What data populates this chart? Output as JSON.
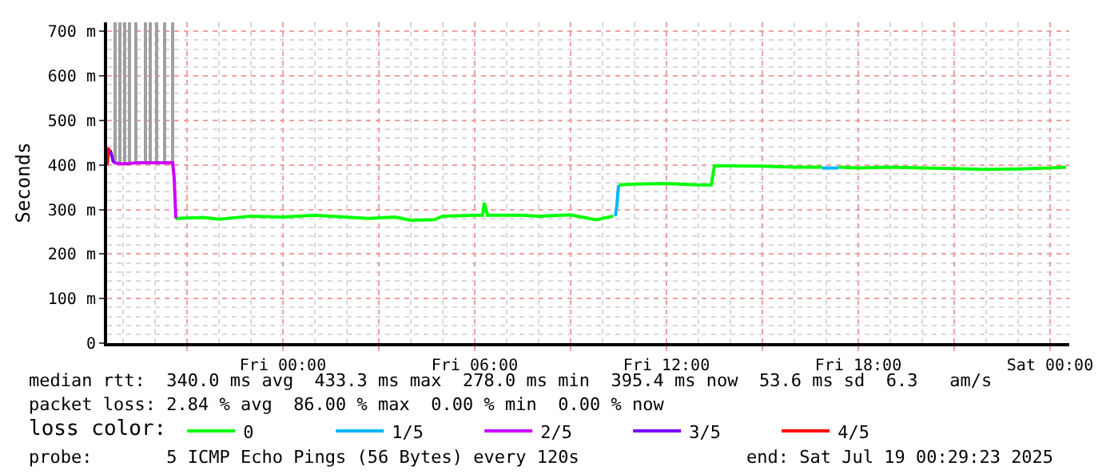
{
  "chart_data": {
    "type": "line",
    "ylabel": "Seconds",
    "legend_title": "loss color:",
    "legend": "bottom",
    "grid": true,
    "marker": "none",
    "line_style": "solid",
    "xlim": [
      "2025-07-17T18:30",
      "2025-07-19T00:36"
    ],
    "xticks": [
      {
        "value": "2025-07-17T21:00",
        "label": null
      },
      {
        "value": "2025-07-18T00:00",
        "label": "Fri 00:00"
      },
      {
        "value": "2025-07-18T03:00",
        "label": null
      },
      {
        "value": "2025-07-18T06:00",
        "label": "Fri 06:00"
      },
      {
        "value": "2025-07-18T09:00",
        "label": null
      },
      {
        "value": "2025-07-18T12:00",
        "label": "Fri 12:00"
      },
      {
        "value": "2025-07-18T15:00",
        "label": null
      },
      {
        "value": "2025-07-18T18:00",
        "label": "Fri 18:00"
      },
      {
        "value": "2025-07-18T21:00",
        "label": null
      },
      {
        "value": "2025-07-19T00:00",
        "label": "Sat 00:00"
      }
    ],
    "ylim": [
      0,
      720
    ],
    "yticks": [
      0,
      {
        "value": 100,
        "label": "100 m"
      },
      {
        "value": 200,
        "label": "200 m"
      },
      {
        "value": 300,
        "label": "300 m"
      },
      {
        "value": 400,
        "label": "400 m"
      },
      {
        "value": 500,
        "label": "500 m"
      },
      {
        "value": 600,
        "label": "600 m"
      },
      {
        "value": 700,
        "label": "700 m"
      }
    ],
    "series": [
      {
        "type": "bar",
        "color": "#a0a0a0",
        "x": [
          "2025-07-17T18:45",
          "2025-07-17T18:54",
          "2025-07-17T19:03",
          "2025-07-17T19:12",
          "2025-07-17T19:24",
          "2025-07-17T19:42",
          "2025-07-17T19:51",
          "2025-07-17T20:03",
          "2025-07-17T20:18",
          "2025-07-17T20:33"
        ],
        "base": [
          400,
          400,
          400,
          400,
          400,
          400,
          400,
          400,
          400,
          400
        ],
        "values": [
          320,
          320,
          320,
          320,
          320,
          320,
          320,
          320,
          320,
          320
        ]
      },
      {
        "name": "0",
        "color": "#00ff00",
        "x": [
          "2025-07-17T20:39",
          "2025-07-17T21:30",
          "2025-07-17T22:00",
          "2025-07-17T23:00",
          "2025-07-18T00:00",
          "2025-07-18T01:00",
          "2025-07-18T02:40",
          "2025-07-18T03:30",
          "2025-07-18T04:00",
          "2025-07-18T04:45",
          "2025-07-18T05:00",
          "2025-07-18T06:00",
          "2025-07-18T06:15",
          "2025-07-18T06:18",
          "2025-07-18T06:24",
          "2025-07-18T07:30",
          "2025-07-18T08:00",
          "2025-07-18T09:00",
          "2025-07-18T09:48",
          "2025-07-18T10:20",
          "2025-07-18T10:24",
          "2025-07-18T10:30",
          "2025-07-18T11:00",
          "2025-07-18T12:00",
          "2025-07-18T13:00",
          "2025-07-18T13:24",
          "2025-07-18T13:30",
          "2025-07-18T14:00",
          "2025-07-18T15:00",
          "2025-07-18T16:00",
          "2025-07-18T16:52",
          "2025-07-18T17:05",
          "2025-07-18T17:23",
          "2025-07-18T18:00",
          "2025-07-18T19:00",
          "2025-07-18T20:00",
          "2025-07-18T21:00",
          "2025-07-18T22:00",
          "2025-07-18T23:00",
          "2025-07-19T00:00",
          "2025-07-19T00:30"
        ],
        "values": [
          280,
          282,
          278,
          285,
          283,
          287,
          280,
          283,
          276,
          277,
          285,
          287,
          287,
          315,
          287,
          287,
          285,
          288,
          277,
          285,
          null,
          355,
          357,
          358,
          355,
          355,
          398,
          398,
          397,
          395,
          395,
          null,
          395,
          393,
          395,
          393,
          392,
          390,
          391,
          393,
          395
        ]
      },
      {
        "name": "1/5",
        "color": "#00b8ff",
        "x": [
          "2025-07-18T10:24",
          "2025-07-18T10:27",
          "2025-07-18T10:30",
          "2025-07-18T15:00",
          "2025-07-18T16:52",
          "2025-07-18T17:23"
        ],
        "values": [
          285,
          310,
          355,
          null,
          393,
          393
        ]
      },
      {
        "name": "2/5",
        "color": "#cc00ff",
        "x": [
          "2025-07-17T18:42",
          "2025-07-17T19:00",
          "2025-07-17T19:30",
          "2025-07-17T20:00",
          "2025-07-17T20:33",
          "2025-07-17T20:36",
          "2025-07-17T20:39"
        ],
        "values": [
          405,
          402,
          405,
          405,
          405,
          370,
          280
        ]
      },
      {
        "name": "3/5",
        "color": "#7b00ff",
        "x": [
          "2025-07-17T18:36",
          "2025-07-17T18:39",
          "2025-07-17T18:42"
        ],
        "values": [
          433,
          420,
          405
        ]
      },
      {
        "name": "4/5",
        "color": "#ff0000",
        "x": [
          "2025-07-17T18:30",
          "2025-07-17T18:33",
          "2025-07-17T18:36"
        ],
        "values": [
          400,
          435,
          433
        ]
      }
    ],
    "annotations": [
      "median rtt:  340.0 ms avg  433.3 ms max  278.0 ms min  395.4 ms now  53.6 ms sd  6.3   am/s",
      "packet loss: 2.84 % avg  86.00 % max  0.00 % min  0.00 % now",
      "probe:       5 ICMP Echo Pings (56 Bytes) every 120s",
      "end: Sat Jul 19 00:29:23 2025"
    ]
  }
}
